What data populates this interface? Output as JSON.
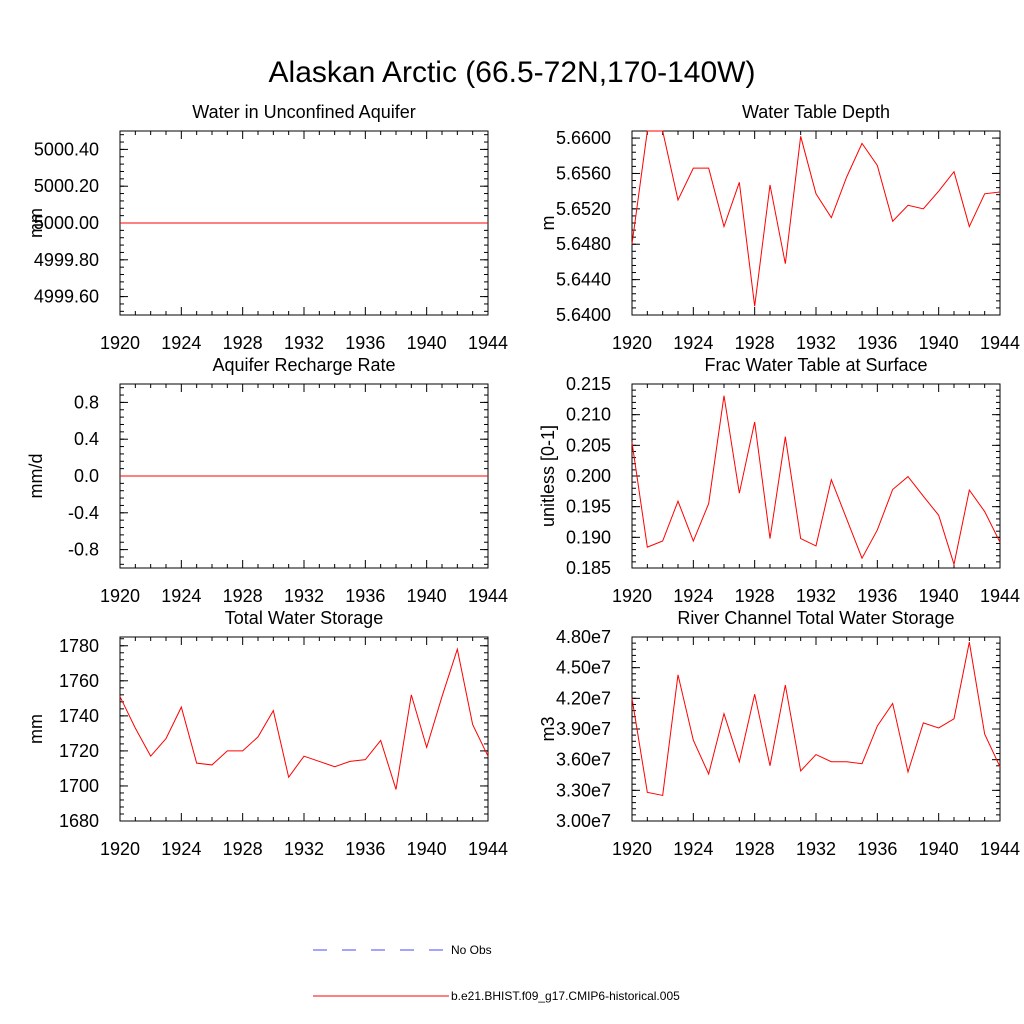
{
  "figure": {
    "title": "Alaskan Arctic (66.5-72N,170-140W)"
  },
  "legend": {
    "entries": [
      {
        "label": "No Obs",
        "color": "#4a4aff",
        "dash": true
      },
      {
        "label": "b.e21.BHIST.f09_g17.CMIP6-historical.005",
        "color": "#ff0000",
        "dash": false
      }
    ]
  },
  "chart_data": [
    {
      "type": "line",
      "title": "Water in Unconfined Aquifer",
      "ylabel": "mm",
      "xlabel": "",
      "xlim": [
        1920,
        1944
      ],
      "ylim": [
        4999.5,
        5000.5
      ],
      "x_ticks": [
        "1920",
        "1924",
        "1928",
        "1932",
        "1936",
        "1940",
        "1944"
      ],
      "y_ticks": [
        4999.6,
        4999.8,
        5000.0,
        5000.2,
        5000.4
      ],
      "y_tick_labels": [
        "4999.60",
        "4999.80",
        "5000.00",
        "5000.20",
        "5000.40"
      ],
      "series": [
        {
          "color": "#ff0000",
          "x": [
            1920,
            1921,
            1922,
            1923,
            1924,
            1925,
            1926,
            1927,
            1928,
            1929,
            1930,
            1931,
            1932,
            1933,
            1934,
            1935,
            1936,
            1937,
            1938,
            1939,
            1940,
            1941,
            1942,
            1943,
            1944
          ],
          "values": [
            5000,
            5000,
            5000,
            5000,
            5000,
            5000,
            5000,
            5000,
            5000,
            5000,
            5000,
            5000,
            5000,
            5000,
            5000,
            5000,
            5000,
            5000,
            5000,
            5000,
            5000,
            5000,
            5000,
            5000,
            5000
          ]
        }
      ]
    },
    {
      "type": "line",
      "title": "Water Table Depth",
      "ylabel": "m",
      "xlabel": "",
      "xlim": [
        1920,
        1944
      ],
      "ylim": [
        5.64,
        5.6608
      ],
      "x_ticks": [
        "1920",
        "1924",
        "1928",
        "1932",
        "1936",
        "1940",
        "1944"
      ],
      "y_ticks": [
        5.64,
        5.644,
        5.648,
        5.652,
        5.656,
        5.66
      ],
      "y_tick_labels": [
        "5.6400",
        "5.6440",
        "5.6480",
        "5.6520",
        "5.6560",
        "5.6600"
      ],
      "series": [
        {
          "color": "#ff0000",
          "x": [
            1920,
            1921,
            1922,
            1923,
            1924,
            1925,
            1926,
            1927,
            1928,
            1929,
            1930,
            1931,
            1932,
            1933,
            1934,
            1935,
            1936,
            1937,
            1938,
            1939,
            1940,
            1941,
            1942,
            1943,
            1944
          ],
          "values": [
            5.648,
            5.6608,
            5.6608,
            5.653,
            5.6566,
            5.6566,
            5.65,
            5.655,
            5.641,
            5.6547,
            5.6458,
            5.6602,
            5.6537,
            5.651,
            5.6556,
            5.6594,
            5.6569,
            5.6506,
            5.6524,
            5.652,
            5.654,
            5.6562,
            5.65,
            5.6537,
            5.6539
          ]
        }
      ]
    },
    {
      "type": "line",
      "title": "Aquifer Recharge Rate",
      "ylabel": "mm/d",
      "xlabel": "",
      "xlim": [
        1920,
        1944
      ],
      "ylim": [
        -1.0,
        1.0
      ],
      "x_ticks": [
        "1920",
        "1924",
        "1928",
        "1932",
        "1936",
        "1940",
        "1944"
      ],
      "y_ticks": [
        -0.8,
        -0.4,
        0.0,
        0.4,
        0.8
      ],
      "y_tick_labels": [
        "-0.8",
        "-0.4",
        "0.0",
        "0.4",
        "0.8"
      ],
      "series": [
        {
          "color": "#ff0000",
          "x": [
            1920,
            1921,
            1922,
            1923,
            1924,
            1925,
            1926,
            1927,
            1928,
            1929,
            1930,
            1931,
            1932,
            1933,
            1934,
            1935,
            1936,
            1937,
            1938,
            1939,
            1940,
            1941,
            1942,
            1943,
            1944
          ],
          "values": [
            0,
            0,
            0,
            0,
            0,
            0,
            0,
            0,
            0,
            0,
            0,
            0,
            0,
            0,
            0,
            0,
            0,
            0,
            0,
            0,
            0,
            0,
            0,
            0,
            0
          ]
        }
      ]
    },
    {
      "type": "line",
      "title": "Frac Water Table at Surface",
      "ylabel": "unitless [0-1]",
      "xlabel": "",
      "xlim": [
        1920,
        1944
      ],
      "ylim": [
        0.185,
        0.215
      ],
      "x_ticks": [
        "1920",
        "1924",
        "1928",
        "1932",
        "1936",
        "1940",
        "1944"
      ],
      "y_ticks": [
        0.185,
        0.19,
        0.195,
        0.2,
        0.205,
        0.21,
        0.215
      ],
      "y_tick_labels": [
        "0.185",
        "0.190",
        "0.195",
        "0.200",
        "0.205",
        "0.210",
        "0.215"
      ],
      "series": [
        {
          "color": "#ff0000",
          "x": [
            1920,
            1921,
            1922,
            1923,
            1924,
            1925,
            1926,
            1927,
            1928,
            1929,
            1930,
            1931,
            1932,
            1933,
            1934,
            1935,
            1936,
            1937,
            1938,
            1939,
            1940,
            1941,
            1942,
            1943,
            1944
          ],
          "values": [
            0.2055,
            0.1884,
            0.1894,
            0.1959,
            0.1894,
            0.1955,
            0.2131,
            0.1972,
            0.2088,
            0.1898,
            0.2064,
            0.1898,
            0.1886,
            0.1994,
            0.193,
            0.1866,
            0.1912,
            0.1978,
            0.1999,
            0.1967,
            0.1936,
            0.1856,
            0.1977,
            0.1942,
            0.1892
          ]
        }
      ]
    },
    {
      "type": "line",
      "title": "Total Water Storage",
      "ylabel": "mm",
      "xlabel": "",
      "xlim": [
        1920,
        1944
      ],
      "ylim": [
        1680,
        1785
      ],
      "x_ticks": [
        "1920",
        "1924",
        "1928",
        "1932",
        "1936",
        "1940",
        "1944"
      ],
      "y_ticks": [
        1680,
        1700,
        1720,
        1740,
        1760,
        1780
      ],
      "y_tick_labels": [
        "1680",
        "1700",
        "1720",
        "1740",
        "1760",
        "1780"
      ],
      "series": [
        {
          "color": "#ff0000",
          "x": [
            1920,
            1921,
            1922,
            1923,
            1924,
            1925,
            1926,
            1927,
            1928,
            1929,
            1930,
            1931,
            1932,
            1933,
            1934,
            1935,
            1936,
            1937,
            1938,
            1939,
            1940,
            1941,
            1942,
            1943,
            1944
          ],
          "values": [
            1751,
            1733,
            1717,
            1727,
            1745,
            1713,
            1712,
            1720,
            1720,
            1728,
            1743,
            1705,
            1717,
            1714,
            1711,
            1714,
            1715,
            1726,
            1698,
            1752,
            1722,
            1751,
            1778,
            1735,
            1717
          ]
        }
      ]
    },
    {
      "type": "line",
      "title": "River Channel Total Water Storage",
      "ylabel": "m3",
      "xlabel": "",
      "xlim": [
        1920,
        1944
      ],
      "ylim": [
        30000000,
        48000000
      ],
      "x_ticks": [
        "1920",
        "1924",
        "1928",
        "1932",
        "1936",
        "1940",
        "1944"
      ],
      "y_ticks": [
        30000000,
        33000000,
        36000000,
        39000000,
        42000000,
        45000000,
        48000000
      ],
      "y_tick_labels": [
        "3.00e7",
        "3.30e7",
        "3.60e7",
        "3.90e7",
        "4.20e7",
        "4.50e7",
        "4.80e7"
      ],
      "series": [
        {
          "color": "#ff0000",
          "x": [
            1920,
            1921,
            1922,
            1923,
            1924,
            1925,
            1926,
            1927,
            1928,
            1929,
            1930,
            1931,
            1932,
            1933,
            1934,
            1935,
            1936,
            1937,
            1938,
            1939,
            1940,
            1941,
            1942,
            1943,
            1944
          ],
          "values": [
            42000000,
            32800000,
            32500000,
            44300000,
            37900000,
            34600000,
            40500000,
            35800000,
            42400000,
            35400000,
            43300000,
            34900000,
            36500000,
            35800000,
            35800000,
            35600000,
            39300000,
            41500000,
            34800000,
            39600000,
            39100000,
            40000000,
            47500000,
            38500000,
            35300000
          ]
        }
      ]
    }
  ]
}
